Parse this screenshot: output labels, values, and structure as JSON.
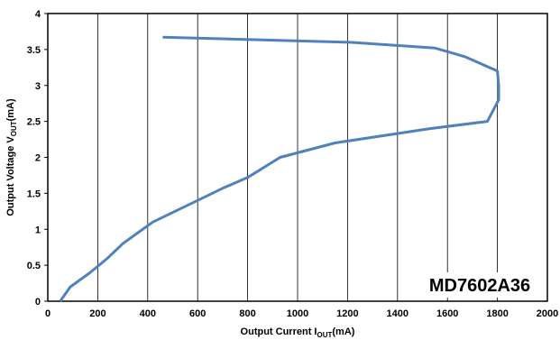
{
  "chart_data": {
    "type": "line",
    "title": "",
    "xlabel": {
      "main": "Output Current I",
      "sub": "OUT",
      "tail": "(mA)"
    },
    "ylabel": {
      "main": "Output Voltage V",
      "sub": "OUT",
      "tail": "(mA)"
    },
    "xlim": [
      0,
      2000
    ],
    "ylim": [
      0,
      4
    ],
    "xticks": [
      0,
      200,
      400,
      600,
      800,
      1000,
      1200,
      1400,
      1600,
      1800,
      2000
    ],
    "yticks": [
      0,
      0.5,
      1,
      1.5,
      2,
      2.5,
      3,
      3.5,
      4
    ],
    "ytick_labels": [
      "0",
      "0.5",
      "1",
      "1.5",
      "2",
      "2.5",
      "3",
      "3.5",
      "4"
    ],
    "grid": {
      "vertical": true,
      "horizontal": false
    },
    "annotation": "MD7602A36",
    "line_color": "#4f81bd",
    "series": [
      {
        "x": [
          460,
          1210,
          1550,
          1670,
          1800,
          1805,
          1805,
          1760,
          1530,
          1150,
          930,
          800,
          700,
          420,
          300,
          240,
          170,
          90,
          50
        ],
        "y": [
          3.67,
          3.6,
          3.52,
          3.4,
          3.2,
          3.0,
          2.8,
          2.5,
          2.4,
          2.2,
          2.0,
          1.72,
          1.57,
          1.1,
          0.8,
          0.6,
          0.4,
          0.2,
          0.0
        ]
      }
    ]
  }
}
